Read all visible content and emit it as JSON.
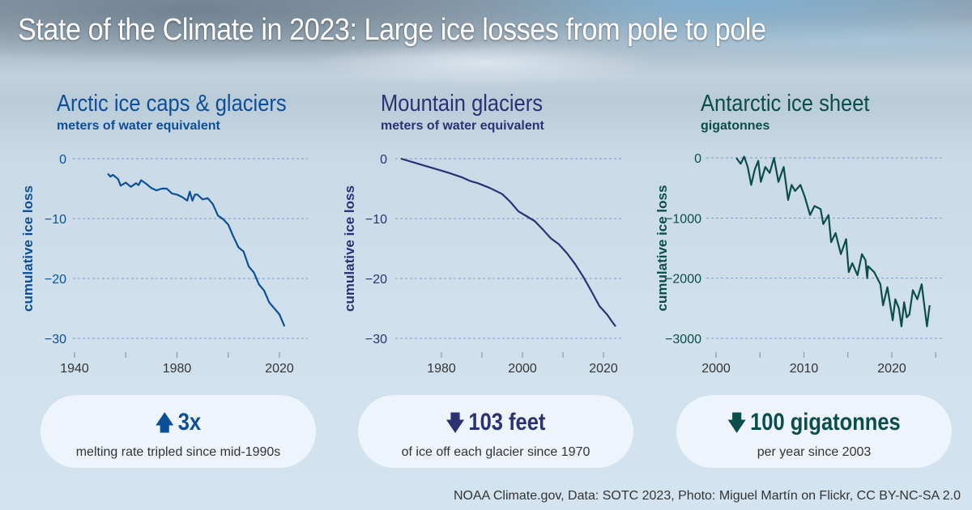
{
  "title": "State of the Climate in 2023: Large ice losses from pole to pole",
  "credit": "NOAA Climate.gov, Data: SOTC 2023, Photo: Miguel Martín on Flickr, CC BY-NC-SA 2.0",
  "colors": {
    "arctic": "#0d4f96",
    "mountain": "#2a3272",
    "antarctic": "#0b4c4c",
    "grid": "#7a9bc0"
  },
  "panels": [
    {
      "title": "Arctic ice caps & glaciers",
      "unit": "meters of water equivalent",
      "stat": "3x",
      "stat_icon": "arrow-up-icon",
      "note": "melting rate tripled since mid-1990s"
    },
    {
      "title": "Mountain glaciers",
      "unit": "meters of water equivalent",
      "stat": "103 feet",
      "stat_icon": "arrow-down-icon",
      "note": "of ice off each glacier since 1970"
    },
    {
      "title": "Antarctic ice sheet",
      "unit": "gigatonnes",
      "stat": "100 gigatonnes",
      "stat_icon": "arrow-down-icon",
      "note": "per year since 2003"
    }
  ],
  "chart_data": [
    {
      "type": "line",
      "title": "Arctic ice caps & glaciers",
      "ylabel": "cumulative ice loss",
      "xlim": [
        1940,
        2030
      ],
      "ylim": [
        -30,
        0
      ],
      "xticks": [
        1940,
        1960,
        1980,
        2000,
        2020
      ],
      "xtick_labels": [
        "1940",
        "",
        "1980",
        "",
        "2020"
      ],
      "yticks": [
        0,
        -10,
        -20,
        -30
      ],
      "ytick_labels": [
        "0",
        "−10",
        "−20",
        "−30"
      ],
      "grid": true,
      "x": [
        1953,
        1954,
        1955,
        1957,
        1958,
        1960,
        1962,
        1964,
        1965,
        1966,
        1968,
        1970,
        1972,
        1974,
        1976,
        1978,
        1980,
        1982,
        1984,
        1985,
        1986,
        1987,
        1988,
        1990,
        1992,
        1994,
        1996,
        1998,
        2000,
        2002,
        2004,
        2006,
        2008,
        2010,
        2012,
        2014,
        2016,
        2018,
        2020,
        2022
      ],
      "y": [
        -2.5,
        -3,
        -2.7,
        -3.4,
        -4.5,
        -4,
        -4.7,
        -4.1,
        -4.4,
        -3.6,
        -4.2,
        -4.9,
        -5.3,
        -5,
        -5,
        -5.8,
        -6,
        -6.4,
        -7,
        -5.5,
        -7,
        -6,
        -6,
        -6.8,
        -6.6,
        -7.6,
        -9.5,
        -10.1,
        -11,
        -13,
        -14.8,
        -15.5,
        -18,
        -19,
        -21,
        -22,
        -24,
        -25,
        -26,
        -28
      ]
    },
    {
      "type": "line",
      "title": "Mountain glaciers",
      "ylabel": "cumulative ice loss",
      "xlim": [
        1970,
        2025
      ],
      "ylim": [
        -30,
        0
      ],
      "xticks": [
        1980,
        1990,
        2000,
        2010,
        2020
      ],
      "xtick_labels": [
        "1980",
        "",
        "2000",
        "",
        "2020"
      ],
      "yticks": [
        0,
        -10,
        -20,
        -30
      ],
      "ytick_labels": [
        "0",
        "−10",
        "−20",
        "−30"
      ],
      "grid": true,
      "x": [
        1970,
        1973,
        1976,
        1979,
        1982,
        1985,
        1987,
        1989,
        1992,
        1995,
        1997,
        1999,
        2001,
        2003,
        2005,
        2007,
        2009,
        2011,
        2013,
        2015,
        2017,
        2019,
        2021,
        2022,
        2023
      ],
      "y": [
        0,
        -0.6,
        -1.2,
        -1.8,
        -2.4,
        -3.1,
        -3.7,
        -4.1,
        -4.9,
        -5.9,
        -7.2,
        -8.8,
        -9.6,
        -10.4,
        -11.8,
        -13.3,
        -14.3,
        -15.8,
        -17.6,
        -19.7,
        -22.1,
        -24.6,
        -26.1,
        -27.1,
        -28
      ]
    },
    {
      "type": "line",
      "title": "Antarctic ice sheet",
      "ylabel": "cumulative ice loss",
      "xlim": [
        2000,
        2025
      ],
      "ylim": [
        -3000,
        0
      ],
      "xticks": [
        2000,
        2005,
        2010,
        2015,
        2020,
        2025
      ],
      "xtick_labels": [
        "2000",
        "",
        "2010",
        "",
        "2020",
        ""
      ],
      "yticks": [
        0,
        -1000,
        -2000,
        -3000
      ],
      "ytick_labels": [
        "0",
        "−1000",
        "−2000",
        "−3000"
      ],
      "grid": true,
      "x": [
        2002.3,
        2002.8,
        2003.2,
        2003.6,
        2004,
        2004.4,
        2004.8,
        2005.1,
        2005.6,
        2006.1,
        2006.6,
        2007.1,
        2007.7,
        2008.2,
        2008.6,
        2009,
        2009.6,
        2010.1,
        2010.7,
        2011.2,
        2011.9,
        2012.2,
        2012.8,
        2013.1,
        2013.6,
        2014.2,
        2014.8,
        2015.1,
        2015.5,
        2016.1,
        2016.6,
        2017,
        2017.2,
        2017.3,
        2018,
        2018.7,
        2019,
        2019.5,
        2020.1,
        2020.4,
        2020.8,
        2021.1,
        2021.4,
        2021.7,
        2022,
        2022.4,
        2022.9,
        2023.4,
        2023.7,
        2024,
        2024.3
      ],
      "y": [
        0,
        -100,
        20,
        -150,
        -450,
        -200,
        -50,
        -400,
        -150,
        -250,
        0,
        -400,
        -150,
        -700,
        -450,
        -550,
        -450,
        -650,
        -950,
        -800,
        -850,
        -1100,
        -950,
        -1400,
        -1250,
        -1600,
        -1350,
        -1900,
        -1750,
        -1950,
        -1600,
        -1700,
        -2000,
        -1800,
        -1900,
        -2100,
        -2450,
        -2150,
        -2700,
        -2350,
        -2500,
        -2800,
        -2400,
        -2650,
        -2600,
        -2200,
        -2350,
        -2100,
        -2450,
        -2800,
        -2450
      ]
    }
  ]
}
